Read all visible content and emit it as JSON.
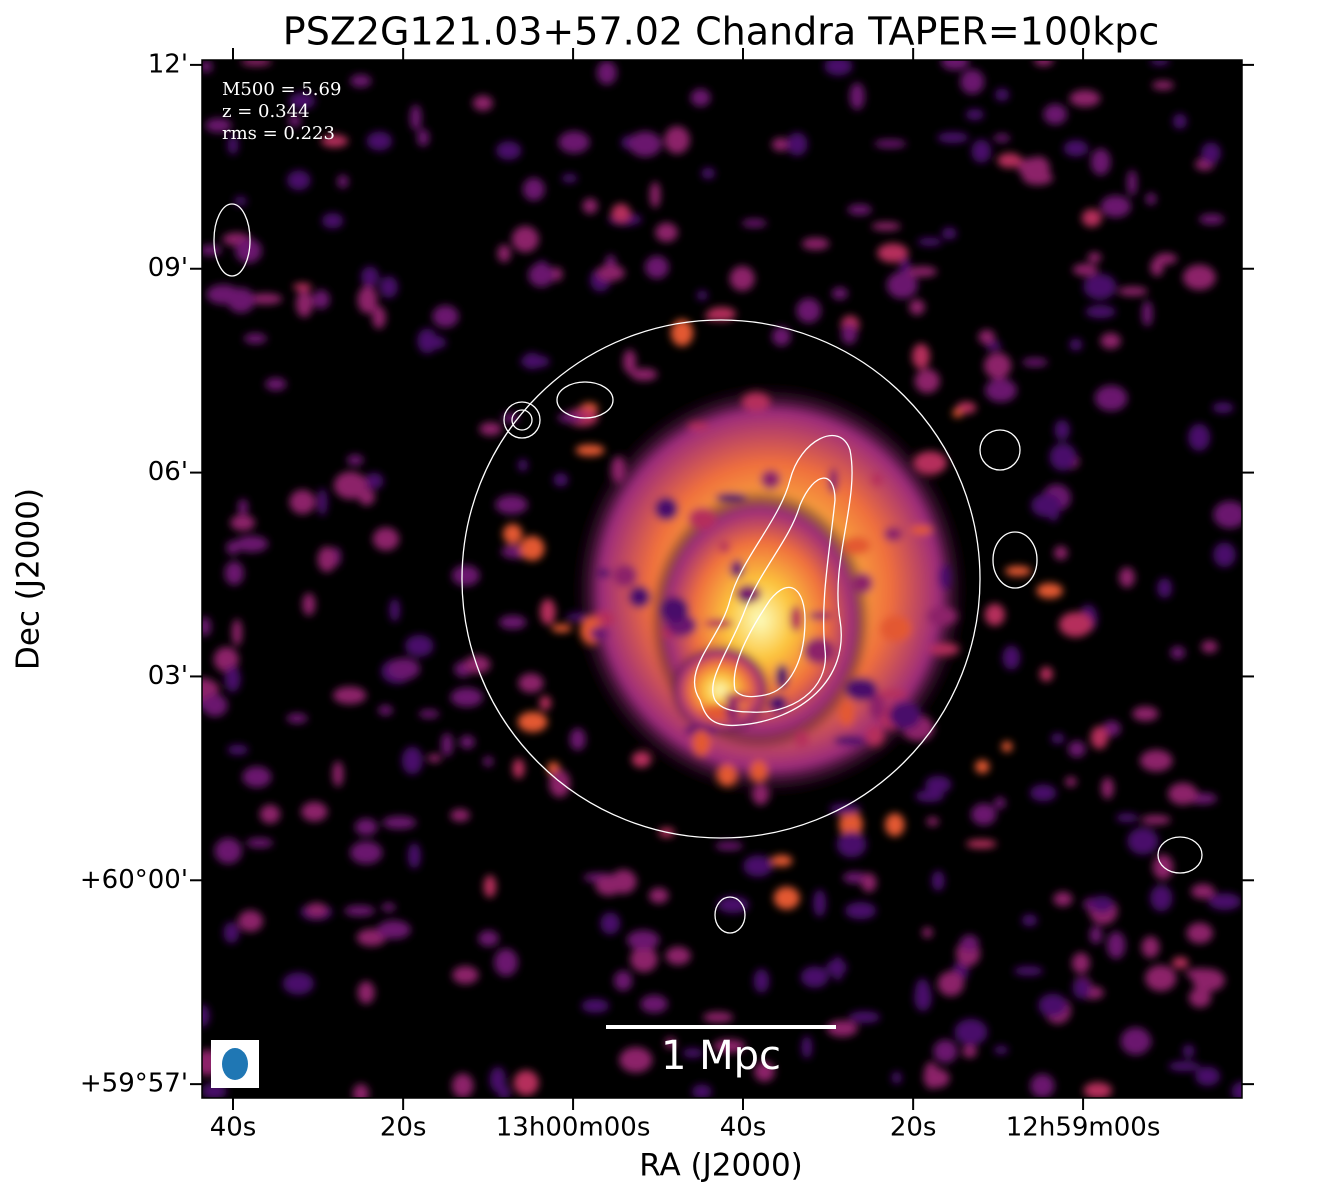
{
  "chart_data": {
    "type": "image",
    "title": "PSZ2G121.03+57.02 Chandra TAPER=100kpc",
    "xlabel": "RA (J2000)",
    "ylabel": "Dec (J2000)",
    "annotations": [
      "M500 = 5.69",
      "z = 0.344",
      "rms = 0.223"
    ],
    "scalebar_label": "1 Mpc",
    "xlim": [
      195.1819,
      194.6721
    ],
    "ylim": [
      59.9466,
      60.2012
    ],
    "xticks": [
      {
        "value": 195.1667,
        "label": "40s"
      },
      {
        "value": 195.0833,
        "label": "20s"
      },
      {
        "value": 195.0,
        "label": "13h00m00s"
      },
      {
        "value": 194.9167,
        "label": "40s"
      },
      {
        "value": 194.8333,
        "label": "20s"
      },
      {
        "value": 194.75,
        "label": "12h59m00s"
      }
    ],
    "yticks": [
      {
        "value": 59.95,
        "label": "+59°57'"
      },
      {
        "value": 60.0,
        "label": "+60°00'"
      },
      {
        "value": 60.05,
        "label": "03'"
      },
      {
        "value": 60.1,
        "label": "06'"
      },
      {
        "value": 60.15,
        "label": "09'"
      },
      {
        "value": 60.2,
        "label": "12'"
      }
    ]
  }
}
